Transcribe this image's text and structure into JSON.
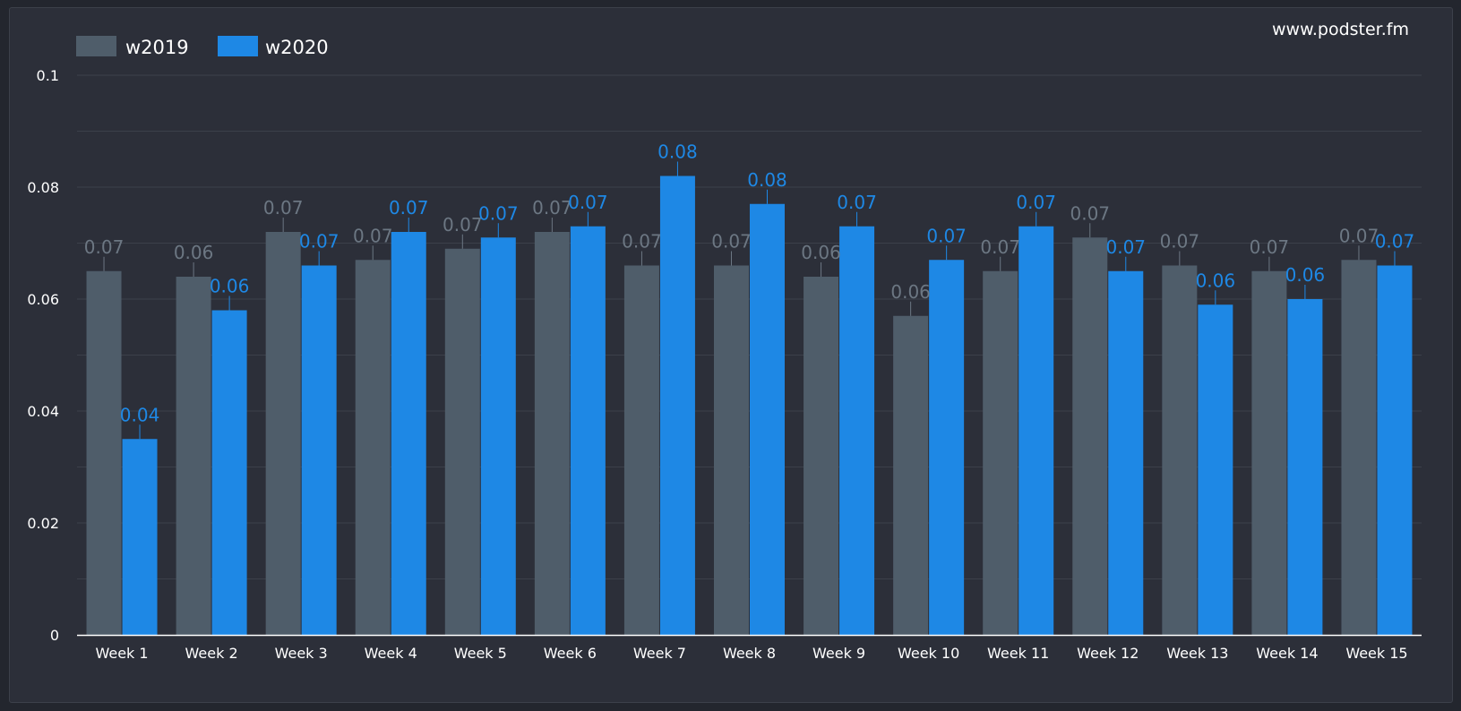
{
  "brand": "www.podster.fm",
  "colors": {
    "w2019": "#4f5d6a",
    "w2020": "#1e88e5",
    "label_w2019": "#6c7783",
    "label_w2020": "#1e88e5",
    "grid": "#3c404a",
    "axis": "#ffffff"
  },
  "chart_data": {
    "type": "bar",
    "categories": [
      "Week 1",
      "Week 2",
      "Week 3",
      "Week 4",
      "Week 5",
      "Week 6",
      "Week 7",
      "Week 8",
      "Week 9",
      "Week 10",
      "Week 11",
      "Week 12",
      "Week 13",
      "Week 14",
      "Week 15"
    ],
    "series": [
      {
        "name": "w2019",
        "values": [
          0.065,
          0.064,
          0.072,
          0.067,
          0.069,
          0.072,
          0.066,
          0.066,
          0.064,
          0.057,
          0.065,
          0.071,
          0.066,
          0.065,
          0.067
        ],
        "labels": [
          "0.07",
          "0.06",
          "0.07",
          "0.07",
          "0.07",
          "0.07",
          "0.07",
          "0.07",
          "0.06",
          "0.06",
          "0.07",
          "0.07",
          "0.07",
          "0.07",
          "0.07"
        ]
      },
      {
        "name": "w2020",
        "values": [
          0.035,
          0.058,
          0.066,
          0.072,
          0.071,
          0.073,
          0.082,
          0.077,
          0.073,
          0.067,
          0.073,
          0.065,
          0.059,
          0.06,
          0.066
        ],
        "labels": [
          "0.04",
          "0.06",
          "0.07",
          "0.07",
          "0.07",
          "0.07",
          "0.08",
          "0.08",
          "0.07",
          "0.07",
          "0.07",
          "0.07",
          "0.06",
          "0.06",
          "0.07"
        ]
      }
    ],
    "ylim": [
      0,
      0.1
    ],
    "yticks": [
      0,
      0.02,
      0.04,
      0.06,
      0.08,
      0.1
    ],
    "ytick_labels": [
      "0",
      "0.02",
      "0.04",
      "0.06",
      "0.08",
      "0.1"
    ],
    "grid": true,
    "legend": "top-left"
  }
}
